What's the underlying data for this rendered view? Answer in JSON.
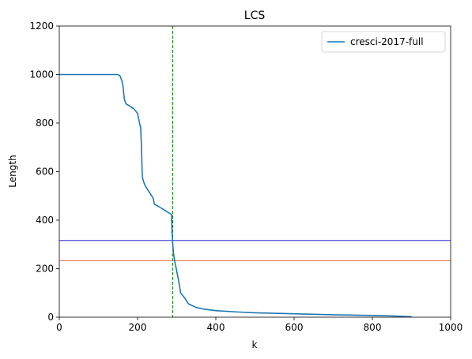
{
  "chart_data": {
    "type": "line",
    "title": "LCS",
    "xlabel": "k",
    "ylabel": "Length",
    "xlim": [
      0,
      1000
    ],
    "ylim": [
      0,
      1200
    ],
    "xticks": [
      0,
      200,
      400,
      600,
      800,
      1000
    ],
    "yticks": [
      0,
      200,
      400,
      600,
      800,
      1000,
      1200
    ],
    "grid": false,
    "legend_position": "top-right",
    "series": [
      {
        "name": "cresci-2017-full",
        "color": "#1f77b4",
        "x": [
          0,
          150,
          155,
          160,
          163,
          166,
          170,
          175,
          180,
          190,
          200,
          205,
          208,
          210,
          212,
          215,
          220,
          230,
          240,
          243,
          250,
          260,
          270,
          280,
          285,
          287,
          288,
          290,
          292,
          295,
          300,
          305,
          310,
          320,
          330,
          350,
          370,
          400,
          450,
          500,
          600,
          700,
          800,
          850,
          900
        ],
        "y": [
          1000,
          1000,
          995,
          975,
          950,
          900,
          880,
          875,
          870,
          860,
          840,
          800,
          780,
          700,
          580,
          560,
          540,
          515,
          490,
          465,
          460,
          450,
          440,
          430,
          425,
          420,
          350,
          300,
          260,
          230,
          190,
          150,
          100,
          80,
          55,
          40,
          33,
          27,
          22,
          18,
          14,
          10,
          7,
          5,
          2
        ]
      }
    ],
    "reference_lines": [
      {
        "orientation": "vertical",
        "value": 290,
        "color": "#008000",
        "style": "dashed"
      },
      {
        "orientation": "horizontal",
        "value": 316,
        "color": "#0000cc",
        "style": "solid"
      },
      {
        "orientation": "horizontal",
        "value": 233,
        "color": "#e04020",
        "style": "solid"
      }
    ]
  }
}
